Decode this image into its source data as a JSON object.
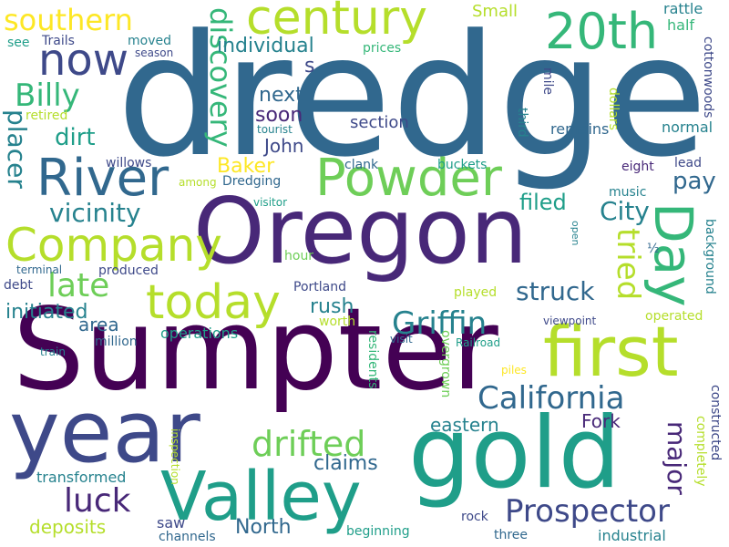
{
  "colors": {
    "background": "#ffffff",
    "palette": [
      "#440154",
      "#482878",
      "#3e4989",
      "#31688e",
      "#26828e",
      "#1f9e89",
      "#35b779",
      "#6ece58",
      "#b5de2b",
      "#fde725"
    ]
  },
  "words": [
    "dredge",
    "Sumpter",
    "Oregon",
    "gold",
    "year",
    "Valley",
    "first",
    "Powder",
    "century",
    "River",
    "20th",
    "Company",
    "today",
    "Day",
    "now",
    "Prospector",
    "California",
    "Griffin",
    "drifted",
    "southern",
    "Billy",
    "discovery",
    "placer",
    "late",
    "tried",
    "luck",
    "vicinity",
    "struck",
    "individual",
    "dirt",
    "major",
    "John",
    "soon",
    "next",
    "pay",
    "City",
    "Baker",
    "Fork",
    "eastern",
    "claims",
    "rush",
    "initiated",
    "area",
    "section",
    "s",
    "filed",
    "deposits",
    "North",
    "transformed",
    "operations",
    "Small",
    "rattle",
    "half",
    "mile",
    "third",
    "remains",
    "cottonwoods",
    "background",
    "constructed",
    "completely",
    "retired",
    "willows",
    "moved",
    "Trails",
    "see",
    "season",
    "prices",
    "tourist",
    "normal",
    "eight",
    "lead",
    "dollars",
    "music",
    "open",
    "½",
    "Dredging",
    "among",
    "visitor",
    "hour",
    "terminal",
    "produced",
    "debt",
    "Portland",
    "million",
    "train",
    "visit",
    "Railroad",
    "viewpoint",
    "residents",
    "overgrown",
    "played",
    "worth",
    "operated",
    "piles",
    "inspection",
    "saw",
    "channels",
    "beginning",
    "rock",
    "three",
    "industrial",
    "buckets",
    "clank"
  ]
}
